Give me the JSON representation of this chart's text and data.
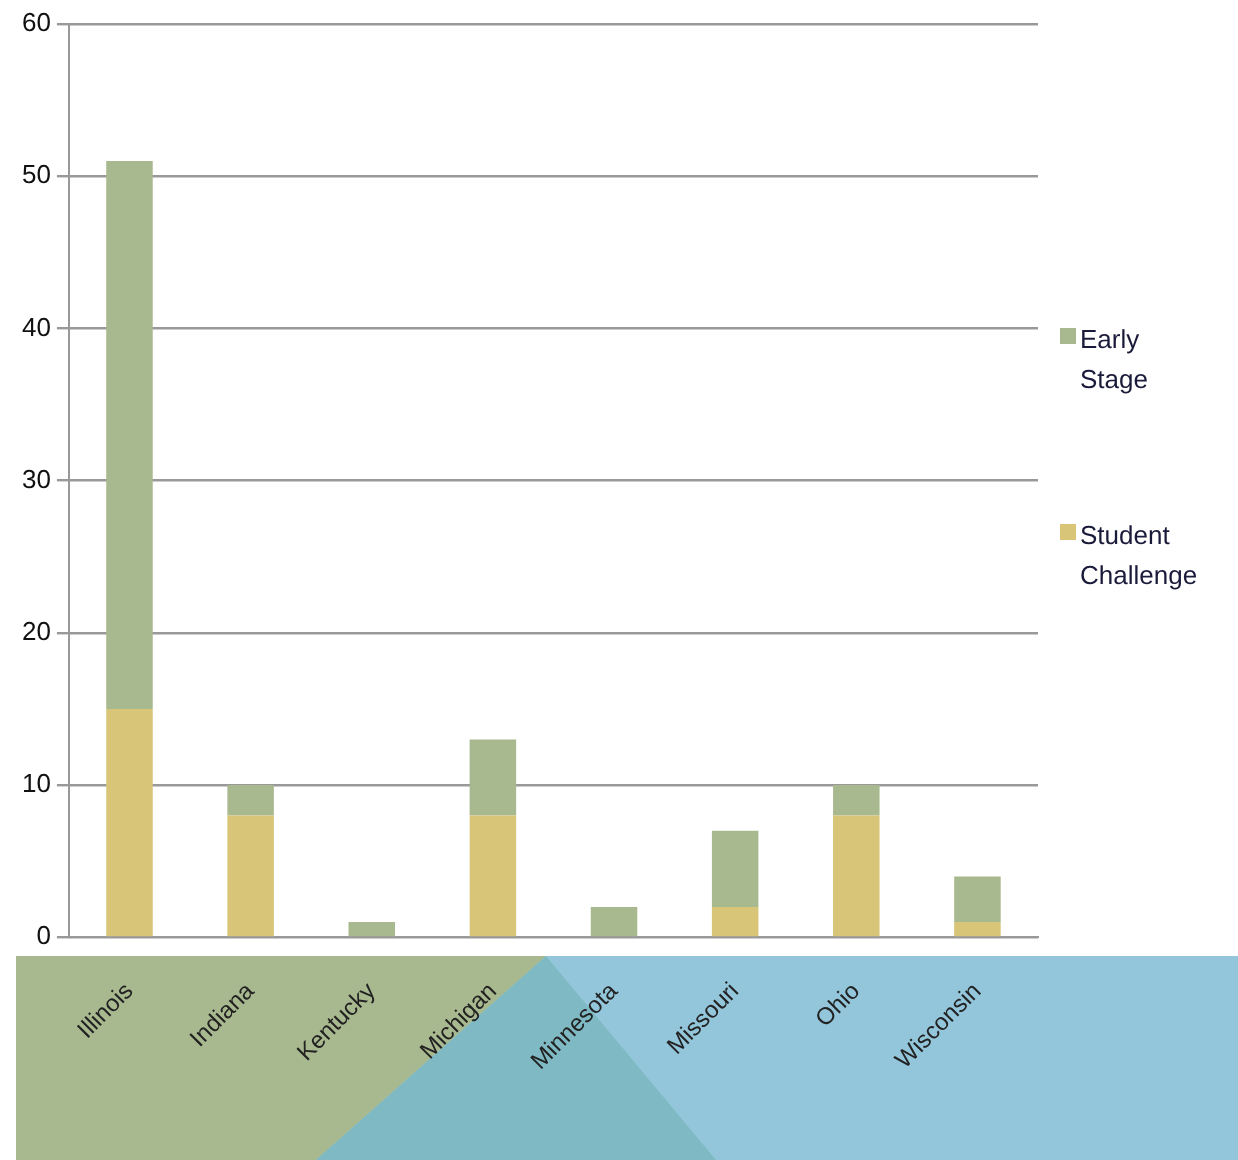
{
  "chart_data": {
    "type": "bar",
    "stacked": true,
    "categories": [
      "Illinois",
      "Indiana",
      "Kentucky",
      "Michigan",
      "Minnesota",
      "Missouri",
      "Ohio",
      "Wisconsin"
    ],
    "series": [
      {
        "name": "Student Challenge",
        "color": "#d8c577",
        "values": [
          15,
          8,
          0,
          8,
          0,
          2,
          8,
          1
        ]
      },
      {
        "name": "Early Stage",
        "color": "#a9b98f",
        "values": [
          36,
          2,
          1,
          5,
          2,
          5,
          2,
          3
        ]
      }
    ],
    "ylim": [
      0,
      60
    ],
    "yticks": [
      0,
      10,
      20,
      30,
      40,
      50,
      60
    ],
    "grid": "y",
    "legend": "right"
  }
}
